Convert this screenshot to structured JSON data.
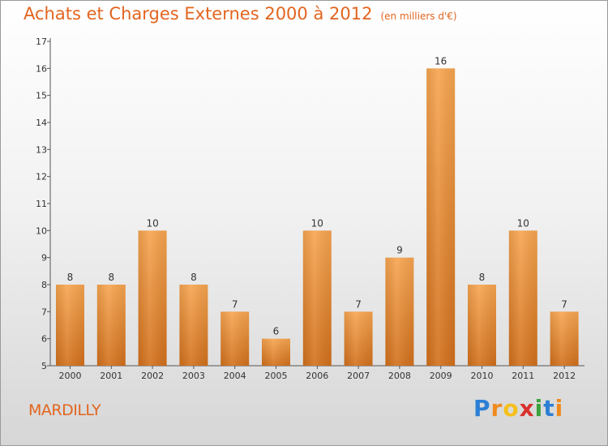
{
  "title": "Achats et Charges Externes 2000 à 2012",
  "unit": "(en milliers d'€)",
  "commune": "MARDILLY",
  "logo": {
    "letters": [
      "P",
      "r",
      "o",
      "x",
      "i",
      "t",
      "i"
    ],
    "colors": [
      "#2b7fd4",
      "#f08a1e",
      "#f5c01b",
      "#d9302c",
      "#3aa23a",
      "#2b7fd4",
      "#f08a1e"
    ]
  },
  "colors": {
    "bar_light": "#f7a550",
    "bar_dark": "#d2701c",
    "text_accent": "#e2651f",
    "axis": "#555555"
  },
  "chart_data": {
    "type": "bar",
    "categories": [
      "2000",
      "2001",
      "2002",
      "2003",
      "2004",
      "2005",
      "2006",
      "2007",
      "2008",
      "2009",
      "2010",
      "2011",
      "2012"
    ],
    "values": [
      8,
      8,
      10,
      8,
      7,
      6,
      10,
      7,
      9,
      16,
      8,
      10,
      7
    ],
    "ylim": [
      5,
      17
    ],
    "yticks": [
      5,
      6,
      7,
      8,
      9,
      10,
      11,
      12,
      13,
      14,
      15,
      16,
      17
    ],
    "grid": false,
    "legend": "none"
  }
}
